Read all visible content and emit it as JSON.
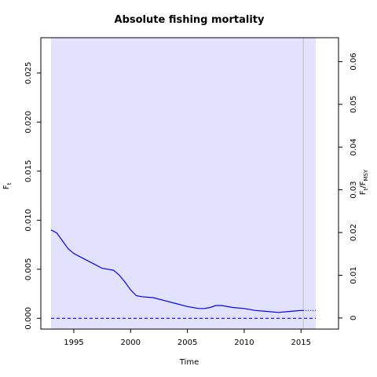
{
  "chart_data": {
    "type": "line",
    "title": "Absolute fishing mortality",
    "xlabel": "Time",
    "ylabel": "F",
    "ylabel_sub": "t",
    "y2label_parts": [
      "F",
      "t",
      "/F",
      "MSY"
    ],
    "xlim": [
      1992.1,
      2018.3
    ],
    "ylim": [
      -0.0011,
      0.0286
    ],
    "y2lim": [
      -0.0026,
      0.0656
    ],
    "x_ticks": [
      1995,
      2000,
      2005,
      2010,
      2015
    ],
    "y_ticks": [
      0.0,
      0.005,
      0.01,
      0.015,
      0.02,
      0.025
    ],
    "y_tick_labels": [
      "0.000",
      "0.005",
      "0.010",
      "0.015",
      "0.020",
      "0.025"
    ],
    "y2_ticks": [
      0,
      0.01,
      0.02,
      0.03,
      0.04,
      0.05,
      0.06
    ],
    "y2_tick_labels": [
      "0",
      "0.01",
      "0.02",
      "0.03",
      "0.04",
      "0.05",
      "0.06"
    ],
    "confidence_band": {
      "x_range": [
        1993.0,
        2016.3
      ],
      "y_range": [
        -0.0011,
        0.0286
      ]
    },
    "last_observation_x": 2015.2,
    "series": [
      {
        "style": "solid",
        "x": [
          1993.0,
          1993.5,
          1994.0,
          1994.5,
          1995.0,
          1996.0,
          1997.0,
          1997.5,
          1998.0,
          1998.5,
          1999.0,
          1999.5,
          2000.0,
          2000.5,
          2001.0,
          2002.0,
          2003.0,
          2004.0,
          2005.0,
          2006.0,
          2006.5,
          2007.0,
          2007.5,
          2008.0,
          2009.0,
          2010.0,
          2011.0,
          2012.0,
          2013.0,
          2014.0,
          2015.0,
          2015.2
        ],
        "y": [
          0.009,
          0.0087,
          0.0079,
          0.0071,
          0.0066,
          0.006,
          0.0054,
          0.0051,
          0.005,
          0.0049,
          0.0044,
          0.0037,
          0.0029,
          0.0023,
          0.0022,
          0.0021,
          0.0018,
          0.0015,
          0.0012,
          0.001,
          0.001,
          0.0011,
          0.0013,
          0.0013,
          0.0011,
          0.001,
          0.0008,
          0.0007,
          0.0006,
          0.0007,
          0.0008,
          0.0008
        ]
      },
      {
        "style": "dotted",
        "x": [
          2015.2,
          2016.3
        ],
        "y": [
          0.0008,
          0.0008
        ]
      },
      {
        "style": "dashed",
        "x": [
          1993.0,
          2016.3
        ],
        "y": [
          0.0,
          0.0
        ]
      }
    ]
  },
  "colors": {
    "band": "#e2e2ff",
    "line": "#0000ff",
    "vline": "#c0c0c0",
    "axis": "#000000"
  }
}
